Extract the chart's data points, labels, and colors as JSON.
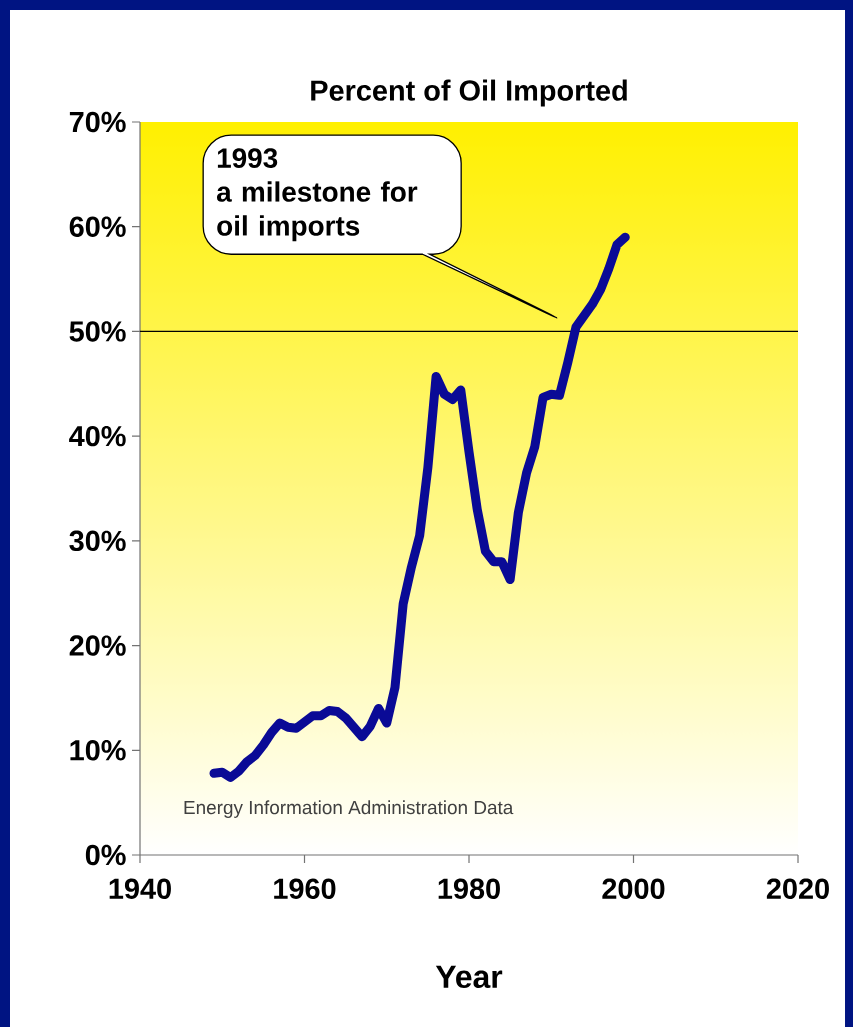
{
  "chart_data": {
    "type": "line",
    "title": "Percent of Oil Imported",
    "xlabel": "Year",
    "x": [
      1949,
      1950,
      1951,
      1952,
      1953,
      1954,
      1955,
      1956,
      1957,
      1958,
      1959,
      1960,
      1961,
      1962,
      1963,
      1964,
      1965,
      1967,
      1968,
      1969,
      1970,
      1971,
      1972,
      1973,
      1974,
      1975,
      1976,
      1977,
      1978,
      1979,
      1980,
      1981,
      1982,
      1983,
      1984,
      1985,
      1986,
      1987,
      1988,
      1989,
      1990,
      1991,
      1992,
      1993,
      1994,
      1995,
      1996,
      1997,
      1998,
      1999
    ],
    "series": [
      {
        "color": "#0a0a96",
        "values": [
          7.8,
          7.9,
          7.4,
          8.0,
          8.9,
          9.5,
          10.5,
          11.7,
          12.6,
          12.2,
          12.1,
          12.7,
          13.3,
          13.3,
          13.8,
          13.7,
          13.1,
          11.3,
          12.3,
          14.0,
          12.6,
          16.0,
          24.0,
          27.5,
          30.5,
          37.0,
          45.7,
          44.0,
          43.5,
          44.4,
          38.5,
          33.0,
          29.0,
          28.0,
          28.0,
          26.3,
          32.7,
          36.5,
          39.0,
          43.7,
          44.0,
          43.9,
          47.0,
          50.4,
          51.5,
          52.6,
          54.0,
          56.0,
          58.3,
          59.0
        ]
      }
    ],
    "xlim": [
      1940,
      2020
    ],
    "xticks": [
      1940,
      1960,
      1980,
      2000,
      2020
    ],
    "ylim": [
      0,
      70
    ],
    "yticks": [
      {
        "value": 0,
        "label": "0%"
      },
      {
        "value": 10,
        "label": "10%"
      },
      {
        "value": 20,
        "label": "20%"
      },
      {
        "value": 30,
        "label": "30%"
      },
      {
        "value": 40,
        "label": "40%"
      },
      {
        "value": 50,
        "label": "50%"
      },
      {
        "value": 60,
        "label": "60%"
      },
      {
        "value": 70,
        "label": "70%"
      }
    ],
    "ref_lines": [
      {
        "axis": "y",
        "value": 50,
        "color": "#000000"
      }
    ],
    "annotations": [
      "1993",
      "a milestone for oil imports",
      "Energy Information Administration Data"
    ],
    "grid": false,
    "marker": "none",
    "line_style": "solid"
  }
}
